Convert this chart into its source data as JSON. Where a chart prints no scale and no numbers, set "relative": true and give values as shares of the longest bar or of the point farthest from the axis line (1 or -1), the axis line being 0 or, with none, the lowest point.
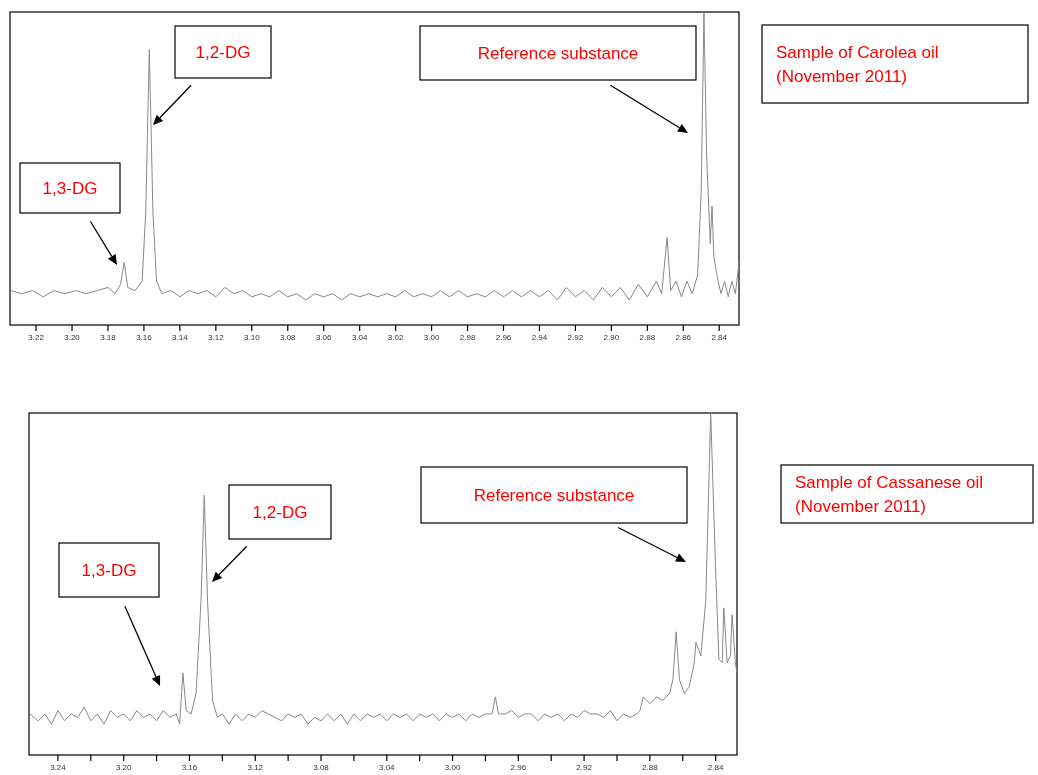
{
  "chart_data": [
    {
      "type": "line",
      "relative": true,
      "xlim": [
        3.2345,
        2.829
      ],
      "xticks": [
        3.22,
        {
          "value": 3.2,
          "label": "3.20"
        },
        3.18,
        3.16,
        3.14,
        3.12,
        {
          "value": 3.1,
          "label": "3.10"
        },
        3.08,
        3.06,
        3.04,
        3.02,
        {
          "value": 3.0,
          "label": "3.00"
        },
        2.98,
        2.96,
        2.94,
        2.92,
        {
          "value": 2.9,
          "label": "2.90"
        },
        2.88,
        2.86,
        2.84
      ],
      "x": [
        3.234,
        3.228,
        3.222,
        3.216,
        3.21,
        3.204,
        3.198,
        3.192,
        3.186,
        3.18,
        3.176,
        3.173,
        3.171,
        3.169,
        3.165,
        3.161,
        3.159,
        3.157,
        3.155,
        3.153,
        3.15,
        3.145,
        3.14,
        3.135,
        3.13,
        3.125,
        3.12,
        3.115,
        3.11,
        3.105,
        3.1,
        3.095,
        3.09,
        3.085,
        3.08,
        3.075,
        3.07,
        3.065,
        3.06,
        3.055,
        3.05,
        3.045,
        3.04,
        3.035,
        3.03,
        3.025,
        3.02,
        3.015,
        3.01,
        3.005,
        3.0,
        2.995,
        2.99,
        2.985,
        2.98,
        2.975,
        2.97,
        2.965,
        2.96,
        2.955,
        2.95,
        2.945,
        2.94,
        2.935,
        2.93,
        2.925,
        2.92,
        2.915,
        2.91,
        2.905,
        2.9,
        2.895,
        2.89,
        2.885,
        2.88,
        2.875,
        2.872,
        2.869,
        2.867,
        2.864,
        2.861,
        2.858,
        2.855,
        2.852,
        2.85,
        2.8485,
        2.847,
        2.845,
        2.844,
        2.843,
        2.841,
        2.839,
        2.837,
        2.835,
        2.833,
        2.831,
        2.829
      ],
      "series": [
        {
          "color": "#888888",
          "values": [
            0.11,
            0.1,
            0.11,
            0.09,
            0.11,
            0.1,
            0.11,
            0.1,
            0.11,
            0.12,
            0.1,
            0.13,
            0.2,
            0.12,
            0.11,
            0.14,
            0.36,
            0.88,
            0.36,
            0.14,
            0.1,
            0.11,
            0.09,
            0.11,
            0.1,
            0.11,
            0.09,
            0.12,
            0.1,
            0.11,
            0.09,
            0.1,
            0.09,
            0.11,
            0.09,
            0.1,
            0.08,
            0.1,
            0.09,
            0.1,
            0.08,
            0.1,
            0.09,
            0.1,
            0.09,
            0.1,
            0.09,
            0.11,
            0.09,
            0.1,
            0.09,
            0.11,
            0.09,
            0.11,
            0.09,
            0.1,
            0.09,
            0.11,
            0.09,
            0.11,
            0.09,
            0.11,
            0.09,
            0.11,
            0.08,
            0.12,
            0.09,
            0.11,
            0.08,
            0.12,
            0.09,
            0.12,
            0.08,
            0.13,
            0.09,
            0.14,
            0.1,
            0.28,
            0.11,
            0.14,
            0.09,
            0.14,
            0.1,
            0.16,
            0.43,
            1,
            0.54,
            0.26,
            0.38,
            0.22,
            0.15,
            0.1,
            0.14,
            0.09,
            0.14,
            0.1,
            0.2
          ]
        }
      ],
      "annotations": [
        "1,3-DG",
        "1,2-DG",
        "Reference substance",
        "Sample of Carolea  oil\n(November 2011)"
      ]
    },
    {
      "type": "line",
      "relative": true,
      "xlim": [
        3.2576,
        2.827
      ],
      "xticks": [
        3.24,
        {
          "value": 3.22,
          "label": null
        },
        {
          "value": 3.2,
          "label": "3.20"
        },
        {
          "value": 3.18,
          "label": null
        },
        3.16,
        {
          "value": 3.14,
          "label": null
        },
        3.12,
        {
          "value": 3.1,
          "label": null
        },
        3.08,
        {
          "value": 3.06,
          "label": null
        },
        3.04,
        {
          "value": 3.02,
          "label": null
        },
        {
          "value": 3.0,
          "label": "3.00"
        },
        {
          "value": 2.98,
          "label": null
        },
        2.96,
        {
          "value": 2.94,
          "label": null
        },
        2.92,
        {
          "value": 2.9,
          "label": null
        },
        2.88,
        {
          "value": 2.86,
          "label": null
        },
        2.84
      ],
      "x": [
        3.257,
        3.252,
        3.248,
        3.244,
        3.24,
        3.236,
        3.232,
        3.228,
        3.224,
        3.22,
        3.216,
        3.212,
        3.208,
        3.204,
        3.2,
        3.196,
        3.192,
        3.188,
        3.184,
        3.18,
        3.176,
        3.172,
        3.168,
        3.166,
        3.164,
        3.162,
        3.159,
        3.156,
        3.153,
        3.151,
        3.149,
        3.146,
        3.143,
        3.14,
        3.136,
        3.132,
        3.128,
        3.124,
        3.12,
        3.116,
        3.112,
        3.108,
        3.104,
        3.1,
        3.096,
        3.092,
        3.088,
        3.084,
        3.08,
        3.076,
        3.072,
        3.068,
        3.064,
        3.06,
        3.056,
        3.052,
        3.048,
        3.044,
        3.04,
        3.036,
        3.032,
        3.028,
        3.024,
        3.02,
        3.016,
        3.012,
        3.008,
        3.004,
        3.0,
        2.996,
        2.992,
        2.988,
        2.984,
        2.98,
        2.976,
        2.974,
        2.972,
        2.968,
        2.964,
        2.96,
        2.956,
        2.952,
        2.948,
        2.944,
        2.94,
        2.936,
        2.932,
        2.928,
        2.924,
        2.92,
        2.916,
        2.912,
        2.908,
        2.904,
        2.9,
        2.896,
        2.892,
        2.888,
        2.886,
        2.884,
        2.88,
        2.876,
        2.872,
        2.868,
        2.866,
        2.864,
        2.862,
        2.859,
        2.856,
        2.853,
        2.852,
        2.849,
        2.846,
        2.843,
        2.84,
        2.838,
        2.836,
        2.835,
        2.833,
        2.831,
        2.83,
        2.828,
        2.827
      ],
      "series": [
        {
          "color": "#888888",
          "values": [
            0.12,
            0.1,
            0.12,
            0.09,
            0.13,
            0.1,
            0.12,
            0.11,
            0.14,
            0.1,
            0.12,
            0.09,
            0.13,
            0.11,
            0.12,
            0.1,
            0.13,
            0.11,
            0.12,
            0.1,
            0.13,
            0.11,
            0.12,
            0.09,
            0.24,
            0.13,
            0.12,
            0.18,
            0.45,
            0.76,
            0.45,
            0.16,
            0.11,
            0.12,
            0.09,
            0.12,
            0.1,
            0.12,
            0.11,
            0.13,
            0.12,
            0.11,
            0.1,
            0.12,
            0.11,
            0.12,
            0.09,
            0.11,
            0.1,
            0.12,
            0.1,
            0.12,
            0.09,
            0.12,
            0.1,
            0.12,
            0.11,
            0.12,
            0.1,
            0.12,
            0.11,
            0.12,
            0.1,
            0.12,
            0.11,
            0.12,
            0.1,
            0.12,
            0.11,
            0.12,
            0.1,
            0.12,
            0.11,
            0.12,
            0.12,
            0.17,
            0.12,
            0.12,
            0.13,
            0.11,
            0.12,
            0.12,
            0.1,
            0.12,
            0.11,
            0.12,
            0.1,
            0.12,
            0.11,
            0.13,
            0.12,
            0.12,
            0.11,
            0.13,
            0.1,
            0.12,
            0.11,
            0.12,
            0.13,
            0.17,
            0.15,
            0.17,
            0.16,
            0.18,
            0.22,
            0.36,
            0.22,
            0.18,
            0.2,
            0.27,
            0.33,
            0.29,
            0.45,
            1,
            0.54,
            0.28,
            0.27,
            0.43,
            0.27,
            0.29,
            0.41,
            0.27,
            0.24
          ]
        }
      ],
      "annotations": [
        "1,3-DG",
        "1,2-DG",
        "Reference substance",
        "Sample of Cassanese  oil\n(November 2011)"
      ]
    }
  ]
}
